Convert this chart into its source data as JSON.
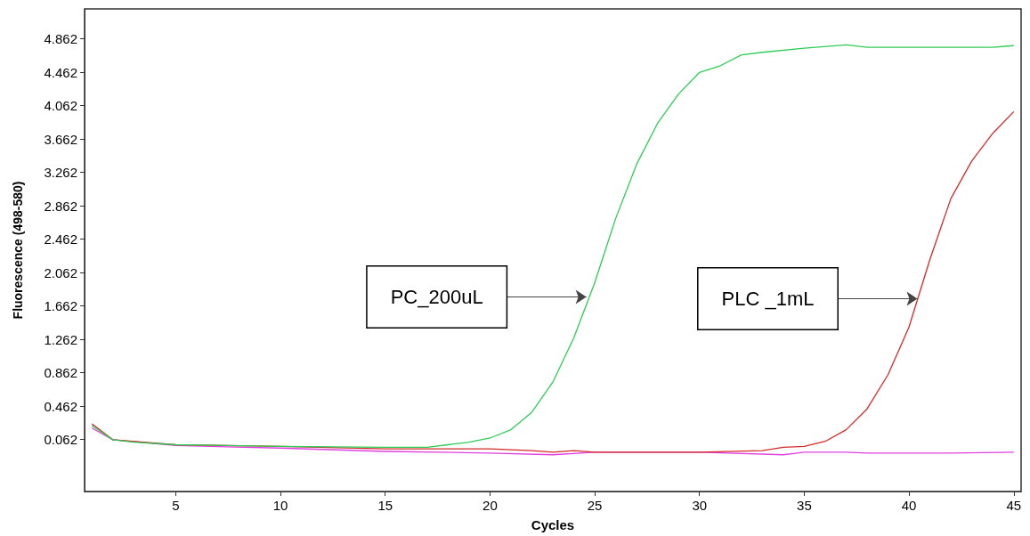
{
  "chart_data": {
    "type": "line",
    "xlabel": "Cycles",
    "ylabel": "Fluorescence (498-580)",
    "xlim": [
      0.65,
      45.35
    ],
    "xticks": [
      5,
      10,
      15,
      20,
      25,
      30,
      35,
      40,
      45
    ],
    "ylim": [
      -0.56,
      5.22
    ],
    "yticks": [
      0.062,
      0.462,
      0.862,
      1.262,
      1.662,
      2.062,
      2.462,
      2.862,
      3.262,
      3.662,
      4.062,
      4.462,
      4.862
    ],
    "grid": false,
    "marker": "none",
    "line_style": "solid",
    "series": [
      {
        "color": "#e040e0",
        "x": [
          1,
          2,
          5,
          10,
          15,
          20,
          23,
          25,
          30,
          34,
          35,
          37,
          38,
          42,
          45
        ],
        "values": [
          0.2,
          0.06,
          -0.01,
          -0.04,
          -0.08,
          -0.1,
          -0.12,
          -0.09,
          -0.09,
          -0.12,
          -0.09,
          -0.09,
          -0.1,
          -0.1,
          -0.09
        ]
      },
      {
        "color": "#d42a2a",
        "x": [
          1,
          2,
          5,
          10,
          15,
          20,
          22,
          23,
          24,
          25,
          30,
          33,
          34,
          35,
          36,
          37,
          38,
          39,
          40,
          41,
          42,
          43,
          44,
          45
        ],
        "values": [
          0.25,
          0.06,
          0,
          -0.02,
          -0.05,
          -0.05,
          -0.07,
          -0.09,
          -0.07,
          -0.09,
          -0.09,
          -0.07,
          -0.03,
          -0.02,
          0.04,
          0.18,
          0.43,
          0.84,
          1.41,
          2.22,
          2.95,
          3.4,
          3.73,
          3.99
        ]
      },
      {
        "color": "#2ecc55",
        "x": [
          1,
          2,
          3,
          5,
          10,
          15,
          17,
          18,
          19,
          20,
          21,
          22,
          23,
          24,
          25,
          26,
          27,
          28,
          29,
          30,
          31,
          32,
          33,
          35,
          37,
          38,
          40,
          44,
          45
        ],
        "values": [
          0.23,
          0.06,
          0.03,
          0,
          -0.02,
          -0.03,
          -0.03,
          0,
          0.03,
          0.08,
          0.18,
          0.39,
          0.75,
          1.28,
          1.94,
          2.71,
          3.36,
          3.85,
          4.2,
          4.46,
          4.54,
          4.67,
          4.7,
          4.75,
          4.79,
          4.76,
          4.76,
          4.76,
          4.78
        ]
      }
    ],
    "annotations": [
      {
        "text": "PC_200uL",
        "x": 24.6,
        "y": 1.77
      },
      {
        "text": "PLC _1mL",
        "x": 40.4,
        "y": 1.75
      }
    ]
  }
}
